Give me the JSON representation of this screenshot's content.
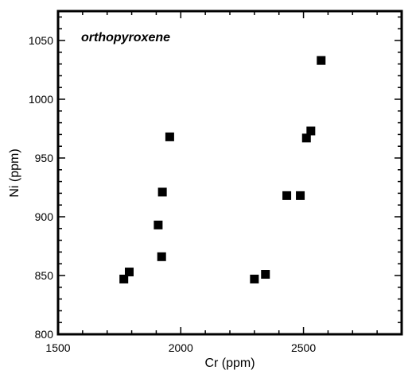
{
  "chart_data": {
    "type": "scatter",
    "title": "",
    "xlabel": "Cr (ppm)",
    "ylabel": "Ni (ppm)",
    "annotation": "orthopyroxene",
    "xlim": [
      1500,
      2900
    ],
    "ylim": [
      800,
      1075
    ],
    "xticks": [
      1500,
      2000,
      2500
    ],
    "yticks": [
      800,
      850,
      900,
      950,
      1000,
      1050
    ],
    "marker": "square",
    "marker_color": "#000000",
    "grid": false,
    "series": [
      {
        "x": [
          1768,
          1790,
          1908,
          1922,
          1925,
          1955,
          2300,
          2345,
          2432,
          2487,
          2512,
          2530,
          2572
        ],
        "y": [
          847,
          853,
          893,
          866,
          921,
          968,
          847,
          851,
          918,
          918,
          967,
          973,
          1033
        ]
      }
    ]
  }
}
